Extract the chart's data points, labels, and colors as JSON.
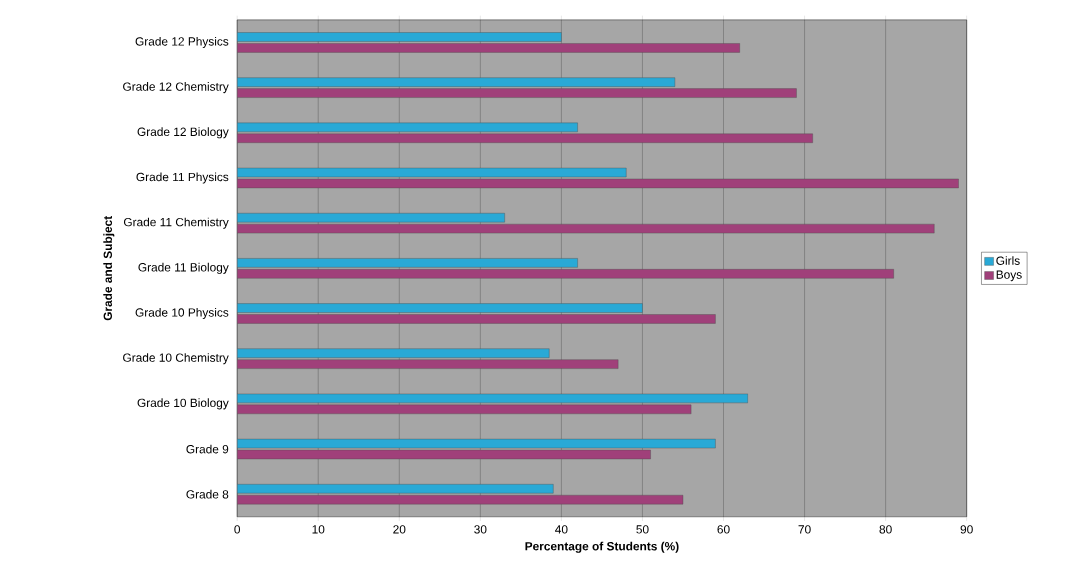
{
  "chart_data": {
    "type": "bar",
    "orientation": "horizontal",
    "xlabel": "Percentage of Students (%)",
    "ylabel": "Grade and Subject",
    "categories": [
      "Grade 12 Physics",
      "Grade 12 Chemistry",
      "Grade 12 Biology",
      "Grade 11 Physics",
      "Grade 11 Chemistry",
      "Grade 11 Biology",
      "Grade 10 Physics",
      "Grade 10 Chemistry",
      "Grade 10 Biology",
      "Grade 9",
      "Grade 8"
    ],
    "series": [
      {
        "name": "Girls",
        "color": "#29a9d6",
        "values": [
          40,
          54,
          42,
          48,
          33,
          42,
          50,
          38.5,
          63,
          59,
          39
        ]
      },
      {
        "name": "Boys",
        "color": "#a0407a",
        "values": [
          62,
          69,
          71,
          89,
          86,
          81,
          59,
          47,
          56,
          51,
          55
        ]
      }
    ],
    "xlim": [
      0,
      90
    ],
    "xticks": [
      0,
      10,
      20,
      30,
      40,
      50,
      60,
      70,
      80,
      90
    ],
    "grid": "x",
    "legend": "right"
  }
}
